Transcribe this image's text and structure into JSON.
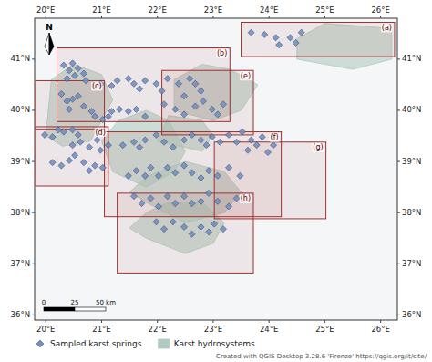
{
  "chart_data": {
    "type": "scatter",
    "xlim": [
      19.8,
      26.3
    ],
    "ylim": [
      35.9,
      41.8
    ],
    "xticks": [
      {
        "value": 20,
        "label": "20°E"
      },
      {
        "value": 21,
        "label": "21°E"
      },
      {
        "value": 22,
        "label": "22°E"
      },
      {
        "value": 23,
        "label": "23°E"
      },
      {
        "value": 24,
        "label": "24°E"
      },
      {
        "value": 25,
        "label": "25°E"
      },
      {
        "value": 26,
        "label": "26°E"
      }
    ],
    "yticks": [
      {
        "value": 36,
        "label": "36°N"
      },
      {
        "value": 37,
        "label": "37°N"
      },
      {
        "value": 38,
        "label": "38°N"
      },
      {
        "value": 39,
        "label": "39°N"
      },
      {
        "value": 40,
        "label": "40°N"
      },
      {
        "value": 41,
        "label": "41°N"
      }
    ],
    "grid": false,
    "legend": "bottom",
    "series": [
      {
        "name": "Sampled karst springs",
        "type": "scatter",
        "marker": "diamond",
        "color": "#7090c0",
        "x": [
          23.68,
          23.92,
          24.12,
          24.38,
          24.58,
          24.48,
          24.18,
          20.32,
          20.48,
          20.58,
          20.42,
          20.52,
          20.38,
          20.68,
          20.72,
          20.98,
          21.18,
          21.28,
          21.48,
          21.58,
          21.68,
          21.78,
          21.98,
          22.08,
          22.18,
          22.38,
          22.58,
          22.68,
          22.78,
          22.48,
          20.28,
          20.48,
          20.58,
          20.38,
          20.42,
          20.68,
          20.82,
          20.88,
          21.02,
          21.12,
          21.18,
          21.32,
          21.48,
          21.62,
          21.78,
          19.98,
          20.12,
          20.22,
          20.32,
          20.48,
          20.58,
          20.48,
          20.62,
          20.78,
          20.92,
          20.98,
          21.12,
          20.12,
          20.28,
          20.42,
          20.52,
          20.68,
          20.78,
          20.88,
          21.02,
          22.12,
          22.32,
          22.48,
          22.68,
          22.82,
          22.98,
          23.08,
          23.18,
          21.38,
          21.58,
          21.68,
          21.78,
          21.98,
          22.12,
          22.28,
          22.48,
          22.62,
          22.78,
          22.88,
          22.98,
          23.12,
          23.28,
          23.42,
          23.52,
          23.62,
          23.68,
          23.78,
          23.88,
          23.98,
          24.08,
          21.48,
          21.62,
          21.78,
          21.88,
          22.02,
          22.18,
          22.32,
          22.48,
          22.62,
          22.78,
          22.92,
          23.08,
          23.28,
          23.48,
          21.58,
          21.72,
          21.88,
          22.02,
          22.18,
          22.32,
          22.48,
          22.62,
          22.78,
          22.92,
          23.08,
          23.28,
          23.42,
          21.98,
          22.12,
          22.28,
          22.48,
          22.62,
          22.78,
          22.92,
          23.02,
          23.18
        ],
        "values": [
          41.52,
          41.48,
          41.42,
          41.42,
          41.52,
          41.32,
          41.28,
          40.88,
          40.92,
          40.82,
          40.78,
          40.68,
          40.62,
          40.72,
          40.58,
          40.52,
          40.48,
          40.58,
          40.62,
          40.52,
          40.42,
          40.58,
          40.52,
          40.38,
          40.62,
          40.52,
          40.62,
          40.52,
          40.38,
          40.28,
          40.32,
          40.22,
          40.28,
          40.18,
          40.02,
          40.08,
          39.98,
          39.88,
          39.82,
          39.88,
          39.98,
          40.02,
          39.98,
          40.02,
          39.88,
          39.52,
          39.48,
          39.62,
          39.58,
          39.62,
          39.52,
          39.32,
          39.38,
          39.28,
          39.42,
          39.22,
          39.32,
          38.98,
          38.92,
          39.02,
          39.12,
          38.98,
          38.82,
          38.92,
          38.88,
          40.12,
          40.02,
          39.92,
          40.08,
          40.18,
          40.02,
          39.92,
          40.12,
          39.32,
          39.38,
          39.28,
          39.42,
          39.52,
          39.38,
          39.28,
          39.42,
          39.52,
          39.42,
          39.32,
          39.48,
          39.38,
          39.52,
          39.38,
          39.58,
          39.22,
          39.42,
          39.32,
          39.48,
          39.18,
          39.32,
          38.72,
          38.82,
          38.72,
          38.88,
          38.72,
          38.88,
          38.78,
          38.92,
          38.78,
          38.68,
          38.82,
          38.72,
          38.88,
          38.72,
          38.32,
          38.18,
          38.28,
          38.12,
          38.32,
          38.18,
          38.32,
          38.18,
          38.22,
          38.38,
          38.22,
          38.12,
          38.28,
          37.82,
          37.68,
          37.82,
          37.72,
          37.58,
          37.72,
          37.62,
          37.78,
          37.68
        ]
      },
      {
        "name": "Karst hydrosystems",
        "type": "polygon",
        "color": "#b0ccc0",
        "polygons": [
          [
            [
              20.0,
              39.5
            ],
            [
              20.3,
              39.3
            ],
            [
              20.8,
              39.4
            ],
            [
              21.0,
              39.8
            ],
            [
              21.2,
              40.2
            ],
            [
              21.0,
              40.7
            ],
            [
              20.5,
              40.9
            ],
            [
              20.1,
              40.6
            ],
            [
              20.0,
              39.5
            ]
          ],
          [
            [
              21.2,
              38.8
            ],
            [
              21.8,
              38.5
            ],
            [
              22.3,
              38.8
            ],
            [
              22.5,
              39.2
            ],
            [
              22.2,
              39.8
            ],
            [
              21.8,
              40.0
            ],
            [
              21.3,
              39.8
            ],
            [
              21.0,
              39.4
            ],
            [
              21.2,
              38.8
            ]
          ],
          [
            [
              22.3,
              40.0
            ],
            [
              23.0,
              39.8
            ],
            [
              23.5,
              40.0
            ],
            [
              23.8,
              40.5
            ],
            [
              23.3,
              40.8
            ],
            [
              22.8,
              40.9
            ],
            [
              22.3,
              40.6
            ],
            [
              22.3,
              40.0
            ]
          ],
          [
            [
              21.8,
              38.2
            ],
            [
              22.5,
              37.8
            ],
            [
              23.2,
              38.0
            ],
            [
              23.5,
              38.4
            ],
            [
              23.2,
              38.8
            ],
            [
              22.5,
              39.0
            ],
            [
              21.8,
              38.7
            ],
            [
              21.5,
              38.4
            ],
            [
              21.8,
              38.2
            ]
          ],
          [
            [
              21.8,
              37.5
            ],
            [
              22.5,
              37.2
            ],
            [
              23.0,
              37.4
            ],
            [
              23.2,
              37.8
            ],
            [
              22.8,
              38.2
            ],
            [
              22.2,
              38.2
            ],
            [
              21.8,
              38.0
            ],
            [
              21.5,
              37.7
            ],
            [
              21.8,
              37.5
            ]
          ],
          [
            [
              24.5,
              41.0
            ],
            [
              25.5,
              40.8
            ],
            [
              26.2,
              41.0
            ],
            [
              26.2,
              41.6
            ],
            [
              25.0,
              41.7
            ],
            [
              24.5,
              41.4
            ],
            [
              24.5,
              41.0
            ]
          ],
          [
            [
              22.0,
              39.4
            ],
            [
              22.8,
              39.2
            ],
            [
              23.0,
              39.5
            ],
            [
              22.8,
              39.8
            ],
            [
              22.2,
              39.9
            ],
            [
              22.0,
              39.4
            ]
          ]
        ]
      }
    ],
    "regions": [
      {
        "label": "(a)",
        "x0": 23.5,
        "x1": 26.25,
        "y0": 41.05,
        "y1": 41.72
      },
      {
        "label": "(b)",
        "x0": 20.2,
        "x1": 23.3,
        "y0": 39.78,
        "y1": 41.22
      },
      {
        "label": "(c)",
        "x0": 19.82,
        "x1": 21.05,
        "y0": 39.62,
        "y1": 40.58
      },
      {
        "label": "(d)",
        "x0": 19.82,
        "x1": 21.12,
        "y0": 38.52,
        "y1": 39.68
      },
      {
        "label": "(e)",
        "x0": 22.08,
        "x1": 23.72,
        "y0": 39.52,
        "y1": 40.78
      },
      {
        "label": "(f)",
        "x0": 21.05,
        "x1": 24.22,
        "y0": 37.92,
        "y1": 39.58
      },
      {
        "label": "(g)",
        "x0": 23.02,
        "x1": 25.02,
        "y0": 37.88,
        "y1": 39.38
      },
      {
        "label": "(h)",
        "x0": 21.28,
        "x1": 23.72,
        "y0": 36.82,
        "y1": 38.38
      }
    ],
    "annotations": [
      "N",
      "0",
      "25",
      "50 km",
      "Created with QGIS Desktop 3.28.6 'Firenze' https://qgis.org/it/site/"
    ]
  }
}
